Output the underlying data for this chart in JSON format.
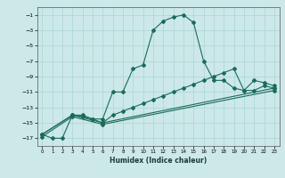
{
  "title": "",
  "xlabel": "Humidex (Indice chaleur)",
  "ylabel": "",
  "bg_color": "#cce8e8",
  "grid_color": "#b0d8d8",
  "line_color": "#1a6b5a",
  "ylim": [
    -18,
    0
  ],
  "xlim": [
    -0.5,
    23.5
  ],
  "yticks": [
    -1,
    -3,
    -5,
    -7,
    -9,
    -11,
    -13,
    -15,
    -17
  ],
  "xticks": [
    0,
    1,
    2,
    3,
    4,
    5,
    6,
    7,
    8,
    9,
    10,
    11,
    12,
    13,
    14,
    15,
    16,
    17,
    18,
    19,
    20,
    21,
    22,
    23
  ],
  "line1_x": [
    0,
    1,
    2,
    3,
    4,
    5,
    6,
    7,
    8,
    9,
    10,
    11,
    12,
    13,
    14,
    15,
    16,
    17,
    18,
    19,
    20,
    21,
    22,
    23
  ],
  "line1_y": [
    -16.5,
    -17.0,
    -17.0,
    -14.0,
    -14.0,
    -14.5,
    -14.5,
    -11.0,
    -11.0,
    -8.0,
    -7.5,
    -3.0,
    -1.8,
    -1.3,
    -1.0,
    -2.0,
    -7.0,
    -9.5,
    -9.5,
    -10.5,
    -10.8,
    -9.5,
    -9.8,
    -10.2
  ],
  "line2_x": [
    0,
    3,
    4,
    5,
    6,
    7,
    8,
    9,
    10,
    11,
    12,
    13,
    14,
    15,
    16,
    17,
    18,
    19,
    20,
    21,
    22,
    23
  ],
  "line2_y": [
    -16.5,
    -14.0,
    -14.2,
    -14.5,
    -15.0,
    -14.0,
    -13.5,
    -13.0,
    -12.5,
    -12.0,
    -11.5,
    -11.0,
    -10.5,
    -10.0,
    -9.5,
    -9.0,
    -8.5,
    -8.0,
    -10.8,
    -10.8,
    -10.2,
    -10.5
  ],
  "line3_x": [
    0,
    3,
    6,
    23
  ],
  "line3_y": [
    -16.5,
    -14.0,
    -15.0,
    -10.5
  ],
  "line4_x": [
    0,
    3,
    6,
    23
  ],
  "line4_y": [
    -16.8,
    -14.2,
    -15.2,
    -10.8
  ]
}
